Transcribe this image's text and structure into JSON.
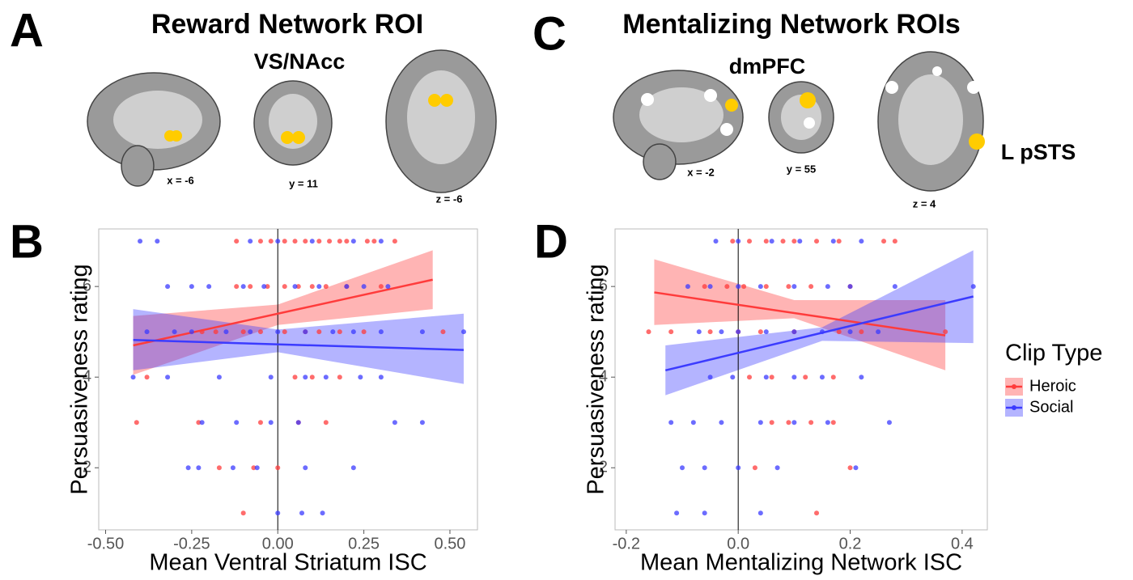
{
  "figure": {
    "panel_a": {
      "letter": "A",
      "title": "Reward Network ROI",
      "roi_label": "VS/NAcc",
      "slices": [
        "x = -6",
        "y = 11",
        "z = -6"
      ]
    },
    "panel_c": {
      "letter": "C",
      "title": "Mentalizing Network ROIs",
      "roi_labels": [
        "dmPFC",
        "L pSTS"
      ],
      "slices": [
        "x = -2",
        "y = 55",
        "z = 4"
      ]
    }
  },
  "chart_data": [
    {
      "type": "scatter",
      "panel_label": "B",
      "x_label": "Mean Ventral Striatum ISC",
      "y_label": "Persuasiveness rating",
      "xlim": [
        -0.52,
        0.58
      ],
      "ylim": [
        0.63,
        7.27
      ],
      "xticks": [
        {
          "value": -0.5,
          "label": "-0.50"
        },
        {
          "value": -0.25,
          "label": "-0.25"
        },
        {
          "value": 0,
          "label": "0.00"
        },
        {
          "value": 0.25,
          "label": "0.25"
        },
        {
          "value": 0.5,
          "label": "0.50"
        }
      ],
      "yticks": [
        2,
        4,
        6
      ],
      "reference_line_x": 0,
      "series": [
        {
          "name": "Heroic",
          "color": "#ff3b3b",
          "x": [
            -0.12,
            -0.05,
            -0.02,
            0.02,
            0.05,
            0.08,
            0.12,
            0.15,
            0.18,
            0.2,
            0.26,
            0.28,
            0.34,
            -0.12,
            -0.08,
            -0.03,
            0.02,
            0.06,
            0.1,
            0.14,
            0.2,
            0.3,
            -0.22,
            -0.18,
            -0.1,
            -0.05,
            0.02,
            0.08,
            0.12,
            0.18,
            0.25,
            0.48,
            -0.38,
            0.05,
            0.1,
            0.18,
            -0.41,
            -0.23,
            -0.05,
            0.06,
            0.14,
            -0.17,
            -0.07,
            0.0,
            -0.1
          ],
          "values": [
            7,
            7,
            7,
            7,
            7,
            7,
            7,
            7,
            7,
            7,
            7,
            7,
            7,
            6,
            6,
            6,
            6,
            6,
            6,
            6,
            6,
            6,
            5,
            5,
            5,
            5,
            5,
            5,
            5,
            5,
            5,
            5,
            4,
            4,
            4,
            4,
            3,
            3,
            3,
            3,
            3,
            2,
            2,
            2,
            1
          ],
          "fit": {
            "x": [
              -0.42,
              0.45
            ],
            "values": [
              4.7,
              6.15
            ]
          },
          "band": {
            "x": [
              -0.42,
              0,
              0.45
            ],
            "lower": [
              4.05,
              5.15,
              5.5
            ],
            "upper": [
              5.35,
              5.6,
              6.8
            ]
          }
        },
        {
          "name": "Social",
          "color": "#3b3bff",
          "x": [
            -0.4,
            -0.35,
            -0.08,
            0.0,
            0.1,
            0.22,
            0.3,
            -0.32,
            -0.25,
            -0.2,
            -0.1,
            -0.04,
            0.05,
            0.12,
            0.2,
            0.25,
            0.32,
            -0.38,
            -0.3,
            -0.25,
            -0.15,
            -0.08,
            0.0,
            0.08,
            0.16,
            0.22,
            0.3,
            0.42,
            0.54,
            -0.42,
            -0.32,
            -0.17,
            -0.02,
            0.08,
            0.14,
            0.24,
            0.3,
            -0.22,
            -0.12,
            -0.02,
            0.06,
            0.34,
            0.42,
            -0.26,
            -0.23,
            -0.13,
            -0.06,
            0.08,
            0.22,
            0.0,
            0.07,
            0.13
          ],
          "values": [
            7,
            7,
            7,
            7,
            7,
            7,
            7,
            6,
            6,
            6,
            6,
            6,
            6,
            6,
            6,
            6,
            6,
            5,
            5,
            5,
            5,
            5,
            5,
            5,
            5,
            5,
            5,
            5,
            5,
            4,
            4,
            4,
            4,
            4,
            4,
            4,
            4,
            3,
            3,
            3,
            3,
            3,
            3,
            2,
            2,
            2,
            2,
            2,
            2,
            1,
            1,
            1
          ],
          "fit": {
            "x": [
              -0.42,
              0.54
            ],
            "values": [
              4.82,
              4.6
            ]
          },
          "band": {
            "x": [
              -0.42,
              0,
              0.54
            ],
            "lower": [
              4.15,
              4.55,
              3.85
            ],
            "upper": [
              5.5,
              5.05,
              5.4
            ]
          }
        }
      ]
    },
    {
      "type": "scatter",
      "panel_label": "D",
      "x_label": "Mean Mentalizing Network ISC",
      "y_label": "Persuasiveness rating",
      "xlim": [
        -0.22,
        0.445
      ],
      "ylim": [
        0.63,
        7.27
      ],
      "xticks": [
        -0.2,
        {
          "value": 0,
          "label": "0.0"
        },
        0.2,
        0.4
      ],
      "yticks": [
        2,
        4,
        6
      ],
      "reference_line_x": 0,
      "legend_title": "Clip Type",
      "legend_position": "right",
      "series": [
        {
          "name": "Heroic",
          "color": "#ff3b3b",
          "x": [
            -0.01,
            0.02,
            0.05,
            0.08,
            0.1,
            0.14,
            0.18,
            0.26,
            0.28,
            -0.06,
            -0.02,
            0.01,
            0.05,
            0.09,
            0.13,
            0.2,
            -0.16,
            -0.12,
            -0.05,
            0.0,
            0.04,
            0.1,
            0.18,
            0.22,
            0.37,
            0.02,
            0.06,
            0.12,
            0.17,
            0.06,
            0.09,
            0.13,
            0.17,
            0.03,
            0.2,
            0.14
          ],
          "values": [
            7,
            7,
            7,
            7,
            7,
            7,
            7,
            7,
            7,
            6,
            6,
            6,
            6,
            6,
            6,
            6,
            5,
            5,
            5,
            5,
            5,
            5,
            5,
            5,
            5,
            4,
            4,
            4,
            4,
            3,
            3,
            3,
            3,
            2,
            2,
            1
          ],
          "fit": {
            "x": [
              -0.15,
              0.37
            ],
            "values": [
              5.87,
              4.92
            ]
          },
          "band": {
            "x": [
              -0.15,
              0.1,
              0.37
            ],
            "lower": [
              5.15,
              5.3,
              4.15
            ],
            "upper": [
              6.6,
              5.7,
              5.7
            ]
          }
        },
        {
          "name": "Social",
          "color": "#3b3bff",
          "x": [
            -0.04,
            0.0,
            0.06,
            0.11,
            0.17,
            0.22,
            -0.09,
            -0.05,
            0.0,
            0.04,
            0.1,
            0.16,
            0.2,
            0.28,
            0.42,
            -0.07,
            -0.03,
            0.0,
            0.05,
            0.1,
            0.15,
            0.2,
            0.25,
            -0.05,
            -0.01,
            0.05,
            0.1,
            0.15,
            0.22,
            -0.12,
            -0.08,
            -0.03,
            0.04,
            0.1,
            0.16,
            0.27,
            -0.1,
            -0.06,
            0.0,
            0.07,
            0.21,
            -0.11,
            -0.06,
            0.04
          ],
          "values": [
            7,
            7,
            7,
            7,
            7,
            7,
            6,
            6,
            6,
            6,
            6,
            6,
            6,
            6,
            6,
            5,
            5,
            5,
            5,
            5,
            5,
            5,
            5,
            4,
            4,
            4,
            4,
            4,
            4,
            3,
            3,
            3,
            3,
            3,
            3,
            3,
            2,
            2,
            2,
            2,
            2,
            1,
            1,
            1
          ],
          "fit": {
            "x": [
              -0.13,
              0.42
            ],
            "values": [
              4.15,
              5.78
            ]
          },
          "band": {
            "x": [
              -0.13,
              0.15,
              0.42
            ],
            "lower": [
              3.6,
              4.8,
              4.75
            ],
            "upper": [
              4.7,
              5.1,
              6.8
            ]
          }
        }
      ]
    }
  ]
}
